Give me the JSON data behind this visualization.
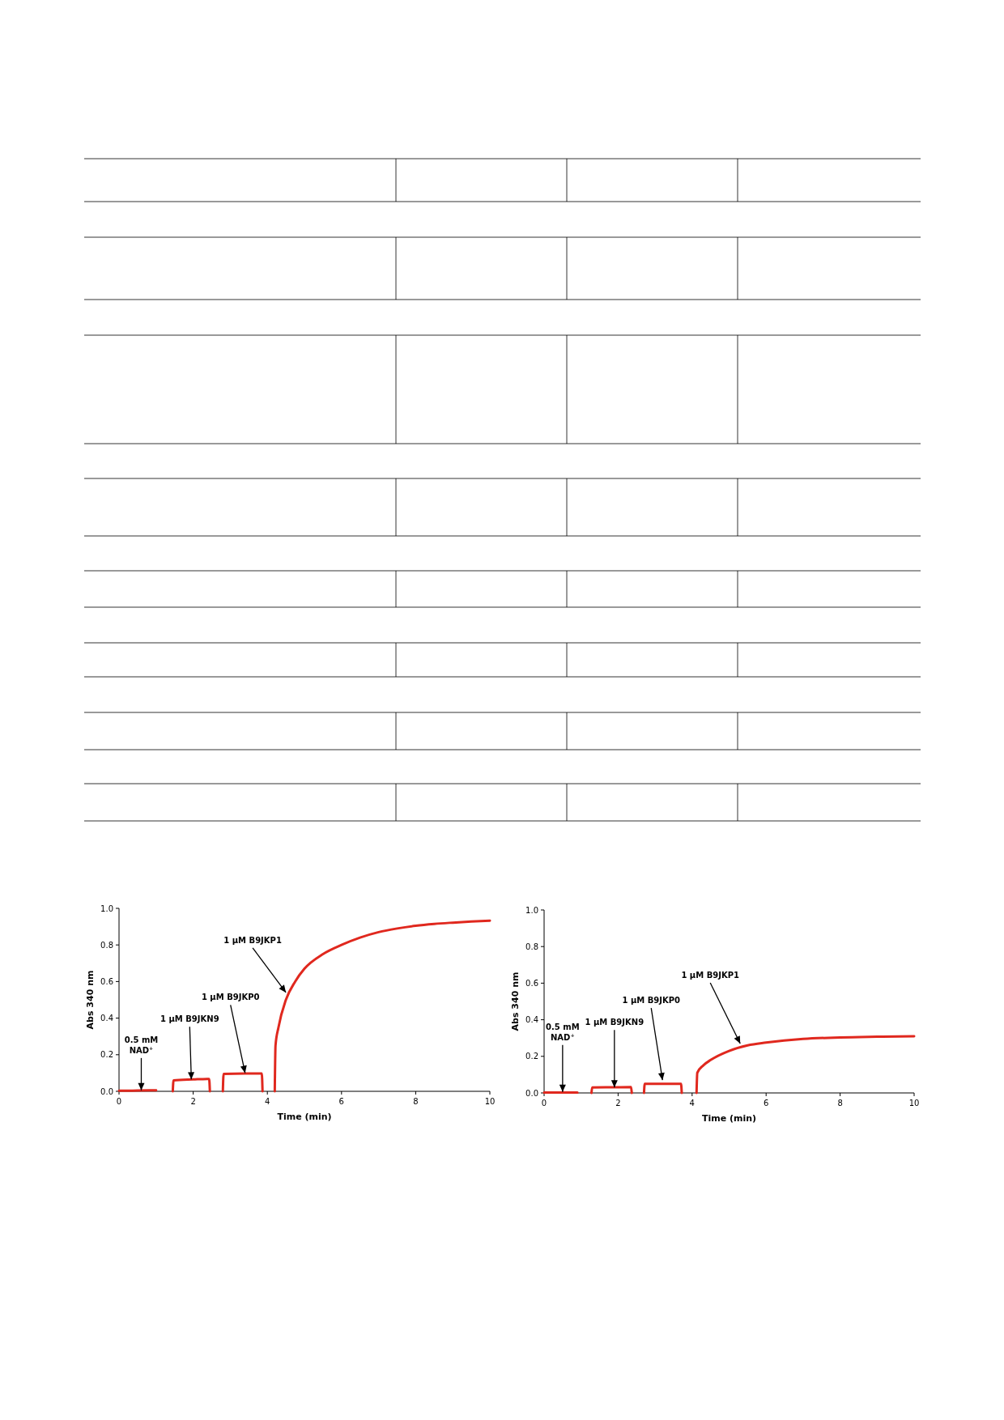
{
  "chart_data": [
    {
      "type": "line",
      "xlabel": "Time (min)",
      "ylabel": "Abs 340 nm",
      "xlim": [
        0,
        10
      ],
      "ylim": [
        0,
        1
      ],
      "xticks": [
        0,
        2,
        4,
        6,
        8,
        10
      ],
      "yticks": [
        {
          "value": 0,
          "label": "0.0"
        },
        {
          "value": 0.2,
          "label": "0.2"
        },
        {
          "value": 0.4,
          "label": "0.4"
        },
        {
          "value": 0.6,
          "label": "0.6"
        },
        {
          "value": 0.8,
          "label": "0.8"
        },
        {
          "value": 1,
          "label": "1.0"
        }
      ],
      "marker": "none",
      "line_style": "solid",
      "series": [
        {
          "color": "#e0281e",
          "x": [
            0,
            0.5,
            1.0,
            1.2,
            1.45,
            1.47,
            2.0,
            2.43,
            2.45,
            2.6,
            2.8,
            2.82,
            3.4,
            3.85,
            3.87,
            4.0,
            4.2,
            4.22,
            4.3,
            4.5,
            4.75,
            5.0,
            5.5,
            6.0,
            6.5,
            7.0,
            7.5,
            8.0,
            8.5,
            9.0,
            9.5,
            10.0
          ],
          "values": [
            0.003,
            0.004,
            0.006,
            null,
            0,
            0.06,
            0.065,
            0.068,
            0,
            null,
            0,
            0.095,
            0.097,
            0.097,
            0,
            null,
            0,
            0.25,
            0.35,
            0.5,
            0.6,
            0.67,
            0.75,
            0.8,
            0.84,
            0.87,
            0.89,
            0.905,
            0.915,
            0.922,
            0.928,
            0.933
          ]
        }
      ],
      "annotations": [
        {
          "text": "0.5 mM\nNAD⁺",
          "x": 0.6,
          "y": 0.005
        },
        {
          "text": "1 μM  B9JKN9",
          "x": 1.95,
          "y": 0.065
        },
        {
          "text": "1 μM  B9JKP0",
          "x": 3.4,
          "y": 0.1
        },
        {
          "text": "1 μM  B9JKP1",
          "x": 4.5,
          "y": 0.54
        }
      ]
    },
    {
      "type": "line",
      "xlabel": "Time (min)",
      "ylabel": "Abs 340 nm",
      "xlim": [
        0,
        10
      ],
      "ylim": [
        0,
        1
      ],
      "xticks": [
        0,
        2,
        4,
        6,
        8,
        10
      ],
      "yticks": [
        {
          "value": 0,
          "label": "0.0"
        },
        {
          "value": 0.2,
          "label": "0.2"
        },
        {
          "value": 0.4,
          "label": "0.4"
        },
        {
          "value": 0.6,
          "label": "0.6"
        },
        {
          "value": 0.8,
          "label": "0.8"
        },
        {
          "value": 1,
          "label": "1.0"
        }
      ],
      "marker": "none",
      "line_style": "solid",
      "series": [
        {
          "color": "#e0281e",
          "x": [
            0,
            0.5,
            0.9,
            1.1,
            1.28,
            1.3,
            1.9,
            2.35,
            2.37,
            2.5,
            2.7,
            2.72,
            3.2,
            3.7,
            3.72,
            3.9,
            4.12,
            4.14,
            4.3,
            4.5,
            5.0,
            5.5,
            6.0,
            7.0,
            8.0,
            9.0,
            10.0
          ],
          "values": [
            0.002,
            0.002,
            0.002,
            null,
            0,
            0.03,
            0.031,
            0.032,
            0,
            null,
            0,
            0.05,
            0.05,
            0.05,
            0,
            null,
            0,
            0.11,
            0.15,
            0.18,
            0.23,
            0.26,
            0.275,
            0.295,
            0.303,
            0.307,
            0.31
          ]
        }
      ],
      "annotations": [
        {
          "text": "0.5 mM\nNAD⁺",
          "x": 0.5,
          "y": 0.005
        },
        {
          "text": "1 μM  B9JKN9",
          "x": 1.9,
          "y": 0.03
        },
        {
          "text": "1 μM  B9JKP0",
          "x": 3.2,
          "y": 0.07
        },
        {
          "text": "1 μM  B9JKP1",
          "x": 5.3,
          "y": 0.27
        }
      ]
    }
  ]
}
